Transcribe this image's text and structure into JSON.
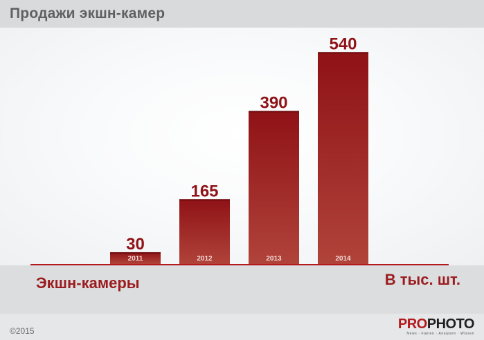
{
  "title": "Продажи экшн-камер",
  "chart_data": {
    "type": "bar",
    "title": "Продажи экшн-камер",
    "categories": [
      "2011",
      "2012",
      "2013",
      "2014"
    ],
    "series": [
      {
        "name": "Экшн-камеры",
        "values": [
          30,
          165,
          390,
          540
        ]
      }
    ],
    "unit_label": "В тыс. шт.",
    "ylim": [
      0,
      560
    ],
    "grid": false,
    "bar_color_top": "#8f1216",
    "bar_color_bottom": "#b0433a"
  },
  "footer": {
    "copyright": "©2015",
    "logo_pro": "PRO",
    "logo_photo": "PHOTO",
    "logo_tagline": "News · Fakten · Analysen · Wissen"
  }
}
